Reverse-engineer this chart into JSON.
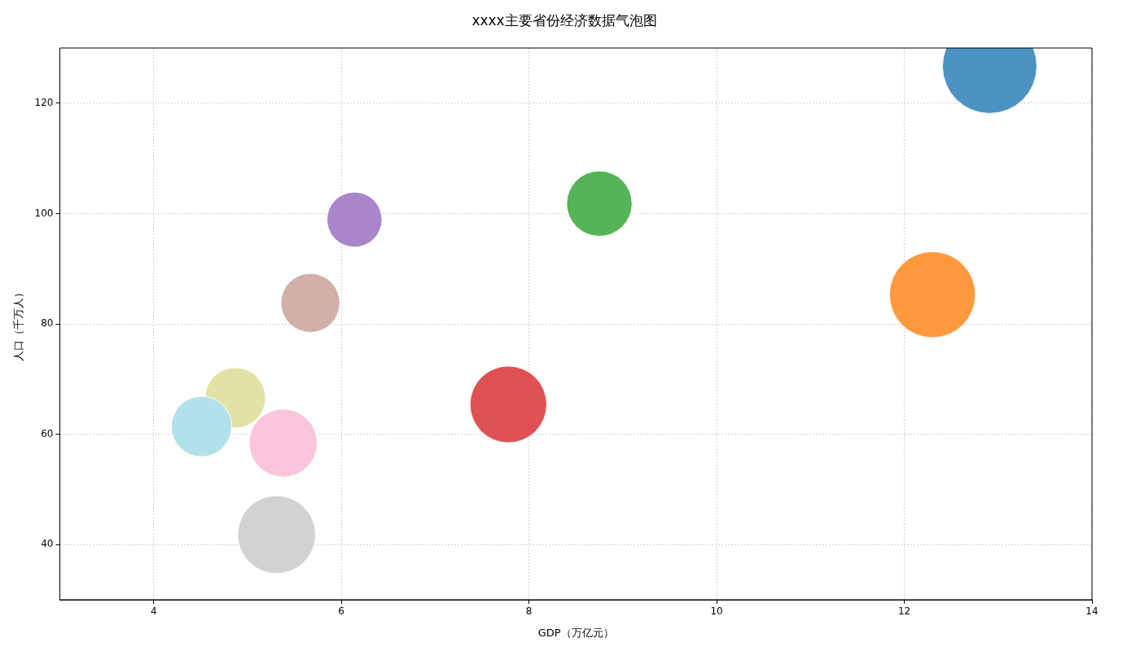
{
  "chart_data": {
    "type": "bubble",
    "title": "xxxx主要省份经济数据气泡图",
    "xlabel": "GDP（万亿元）",
    "ylabel": "人口（千万人）",
    "x": [
      12.91,
      12.3,
      8.75,
      7.78,
      6.14,
      5.67,
      5.38,
      5.31,
      4.87,
      4.51
    ],
    "values": [
      126.7,
      85.3,
      101.8,
      65.4,
      98.9,
      83.8,
      58.4,
      41.8,
      66.6,
      61.4
    ],
    "sizes": [
      1,
      0.83,
      0.48,
      0.66,
      0.34,
      0.39,
      0.52,
      0.68,
      0.41,
      0.41
    ],
    "colors": [
      "#4c92c3",
      "#ff993e",
      "#56b356",
      "#de5253",
      "#a985ca",
      "#d0b0a9",
      "#f9c5db",
      "#d2d2d2",
      "#e2e2a4",
      "#b2e1ea"
    ],
    "xlim": [
      3,
      14
    ],
    "xticks": [
      4,
      6,
      8,
      10,
      12,
      14
    ],
    "ylim": [
      30,
      130
    ],
    "yticks": [
      40,
      60,
      80,
      100,
      120
    ],
    "grid": true,
    "legend": false
  }
}
